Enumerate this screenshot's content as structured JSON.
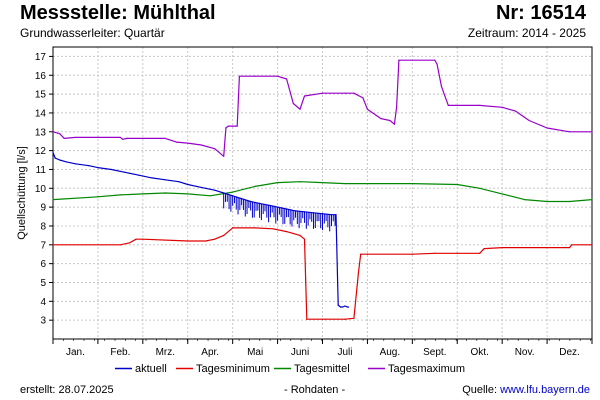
{
  "header": {
    "title": "Messstelle: Mühlthal",
    "number": "Nr: 16514",
    "aquifer": "Grundwasserleiter: Quartär",
    "period": "Zeitraum: 2014 - 2025"
  },
  "footer": {
    "created_label": "erstellt:",
    "created_date": "28.07.2025",
    "data_note": "- Rohdaten -",
    "source_label": "Quelle:",
    "source_link": "www.lfu.bayern.de"
  },
  "colors": {
    "aktuell": "#0000cc",
    "min": "#e00000",
    "mean": "#008800",
    "max": "#9900cc",
    "grid": "#c8c8c8"
  },
  "chart_data": {
    "type": "line",
    "ylabel": "Quellschüttung [l/s]",
    "ylim": [
      2,
      17.5
    ],
    "yticks": [
      3,
      4,
      5,
      6,
      7,
      8,
      9,
      10,
      11,
      12,
      13,
      14,
      15,
      16,
      17
    ],
    "xlim": [
      0,
      12
    ],
    "month_labels": [
      "Jan.",
      "Feb.",
      "Mrz.",
      "Apr.",
      "Mai",
      "Juni",
      "Juli",
      "Aug.",
      "Sept.",
      "Okt.",
      "Nov.",
      "Dez."
    ],
    "grid": true,
    "legend_position": "bottom",
    "series": [
      {
        "name": "aktuell",
        "key": "aktuell",
        "x": [
          0.0,
          0.05,
          0.15,
          0.3,
          0.5,
          0.8,
          1.0,
          1.3,
          1.6,
          1.9,
          2.2,
          2.5,
          2.8,
          3.0,
          3.2,
          3.4,
          3.6,
          3.8,
          4.0,
          4.2,
          4.4,
          4.6,
          4.8,
          5.0,
          5.2,
          5.4,
          5.6,
          5.8,
          6.0,
          6.2,
          6.3,
          6.35,
          6.4,
          6.45,
          6.5,
          6.55,
          6.58
        ],
        "y": [
          11.9,
          11.6,
          11.5,
          11.4,
          11.3,
          11.2,
          11.1,
          11.0,
          10.85,
          10.7,
          10.55,
          10.45,
          10.35,
          10.2,
          10.1,
          10.0,
          9.9,
          9.75,
          9.6,
          9.45,
          9.3,
          9.2,
          9.1,
          9.0,
          8.9,
          8.8,
          8.75,
          8.7,
          8.65,
          8.6,
          8.6,
          3.8,
          3.7,
          3.7,
          3.75,
          3.7,
          3.7
        ]
      },
      {
        "name": "Tagesminimum",
        "key": "min",
        "x": [
          0.0,
          1.5,
          1.7,
          1.85,
          2.0,
          3.0,
          3.4,
          3.6,
          3.8,
          4.0,
          4.5,
          4.9,
          5.2,
          5.5,
          5.6,
          5.65,
          6.0,
          6.5,
          6.7,
          6.8,
          6.85,
          7.0,
          8.0,
          8.5,
          9.0,
          9.5,
          9.6,
          10.0,
          11.0,
          11.5,
          11.55,
          12.0
        ],
        "y": [
          7.0,
          7.0,
          7.1,
          7.3,
          7.3,
          7.2,
          7.2,
          7.3,
          7.5,
          7.9,
          7.9,
          7.85,
          7.7,
          7.5,
          7.3,
          3.05,
          3.05,
          3.05,
          3.1,
          5.5,
          6.5,
          6.5,
          6.5,
          6.55,
          6.55,
          6.55,
          6.8,
          6.85,
          6.85,
          6.85,
          7.0,
          7.0
        ]
      },
      {
        "name": "Tagesmittel",
        "key": "mean",
        "x": [
          0.0,
          1.0,
          1.5,
          2.0,
          2.5,
          3.0,
          3.5,
          4.0,
          4.5,
          5.0,
          5.5,
          6.0,
          6.5,
          7.0,
          8.0,
          9.0,
          9.5,
          10.0,
          10.5,
          11.0,
          11.5,
          12.0
        ],
        "y": [
          9.4,
          9.55,
          9.65,
          9.7,
          9.75,
          9.7,
          9.6,
          9.8,
          10.1,
          10.3,
          10.35,
          10.3,
          10.25,
          10.25,
          10.25,
          10.2,
          10.0,
          9.7,
          9.4,
          9.3,
          9.3,
          9.4
        ]
      },
      {
        "name": "Tagesmaximum",
        "key": "max",
        "x": [
          0.0,
          0.15,
          0.25,
          0.5,
          1.5,
          1.55,
          1.65,
          2.5,
          2.75,
          3.0,
          3.3,
          3.6,
          3.8,
          3.85,
          3.9,
          4.0,
          4.1,
          4.15,
          4.5,
          5.0,
          5.2,
          5.35,
          5.5,
          5.6,
          6.0,
          6.5,
          6.7,
          6.9,
          7.0,
          7.3,
          7.5,
          7.6,
          7.65,
          7.7,
          8.5,
          8.55,
          8.65,
          8.8,
          9.5,
          10.0,
          10.3,
          10.6,
          11.0,
          11.5,
          12.0
        ],
        "y": [
          13.0,
          12.9,
          12.65,
          12.7,
          12.7,
          12.6,
          12.65,
          12.65,
          12.45,
          12.4,
          12.3,
          12.1,
          11.7,
          13.2,
          13.3,
          13.3,
          13.3,
          15.95,
          15.95,
          15.95,
          15.8,
          14.5,
          14.2,
          14.9,
          15.05,
          15.05,
          15.05,
          14.8,
          14.2,
          13.7,
          13.6,
          13.4,
          14.3,
          16.8,
          16.8,
          16.6,
          15.4,
          14.4,
          14.4,
          14.3,
          14.1,
          13.6,
          13.2,
          13.0,
          13.0
        ]
      }
    ]
  }
}
